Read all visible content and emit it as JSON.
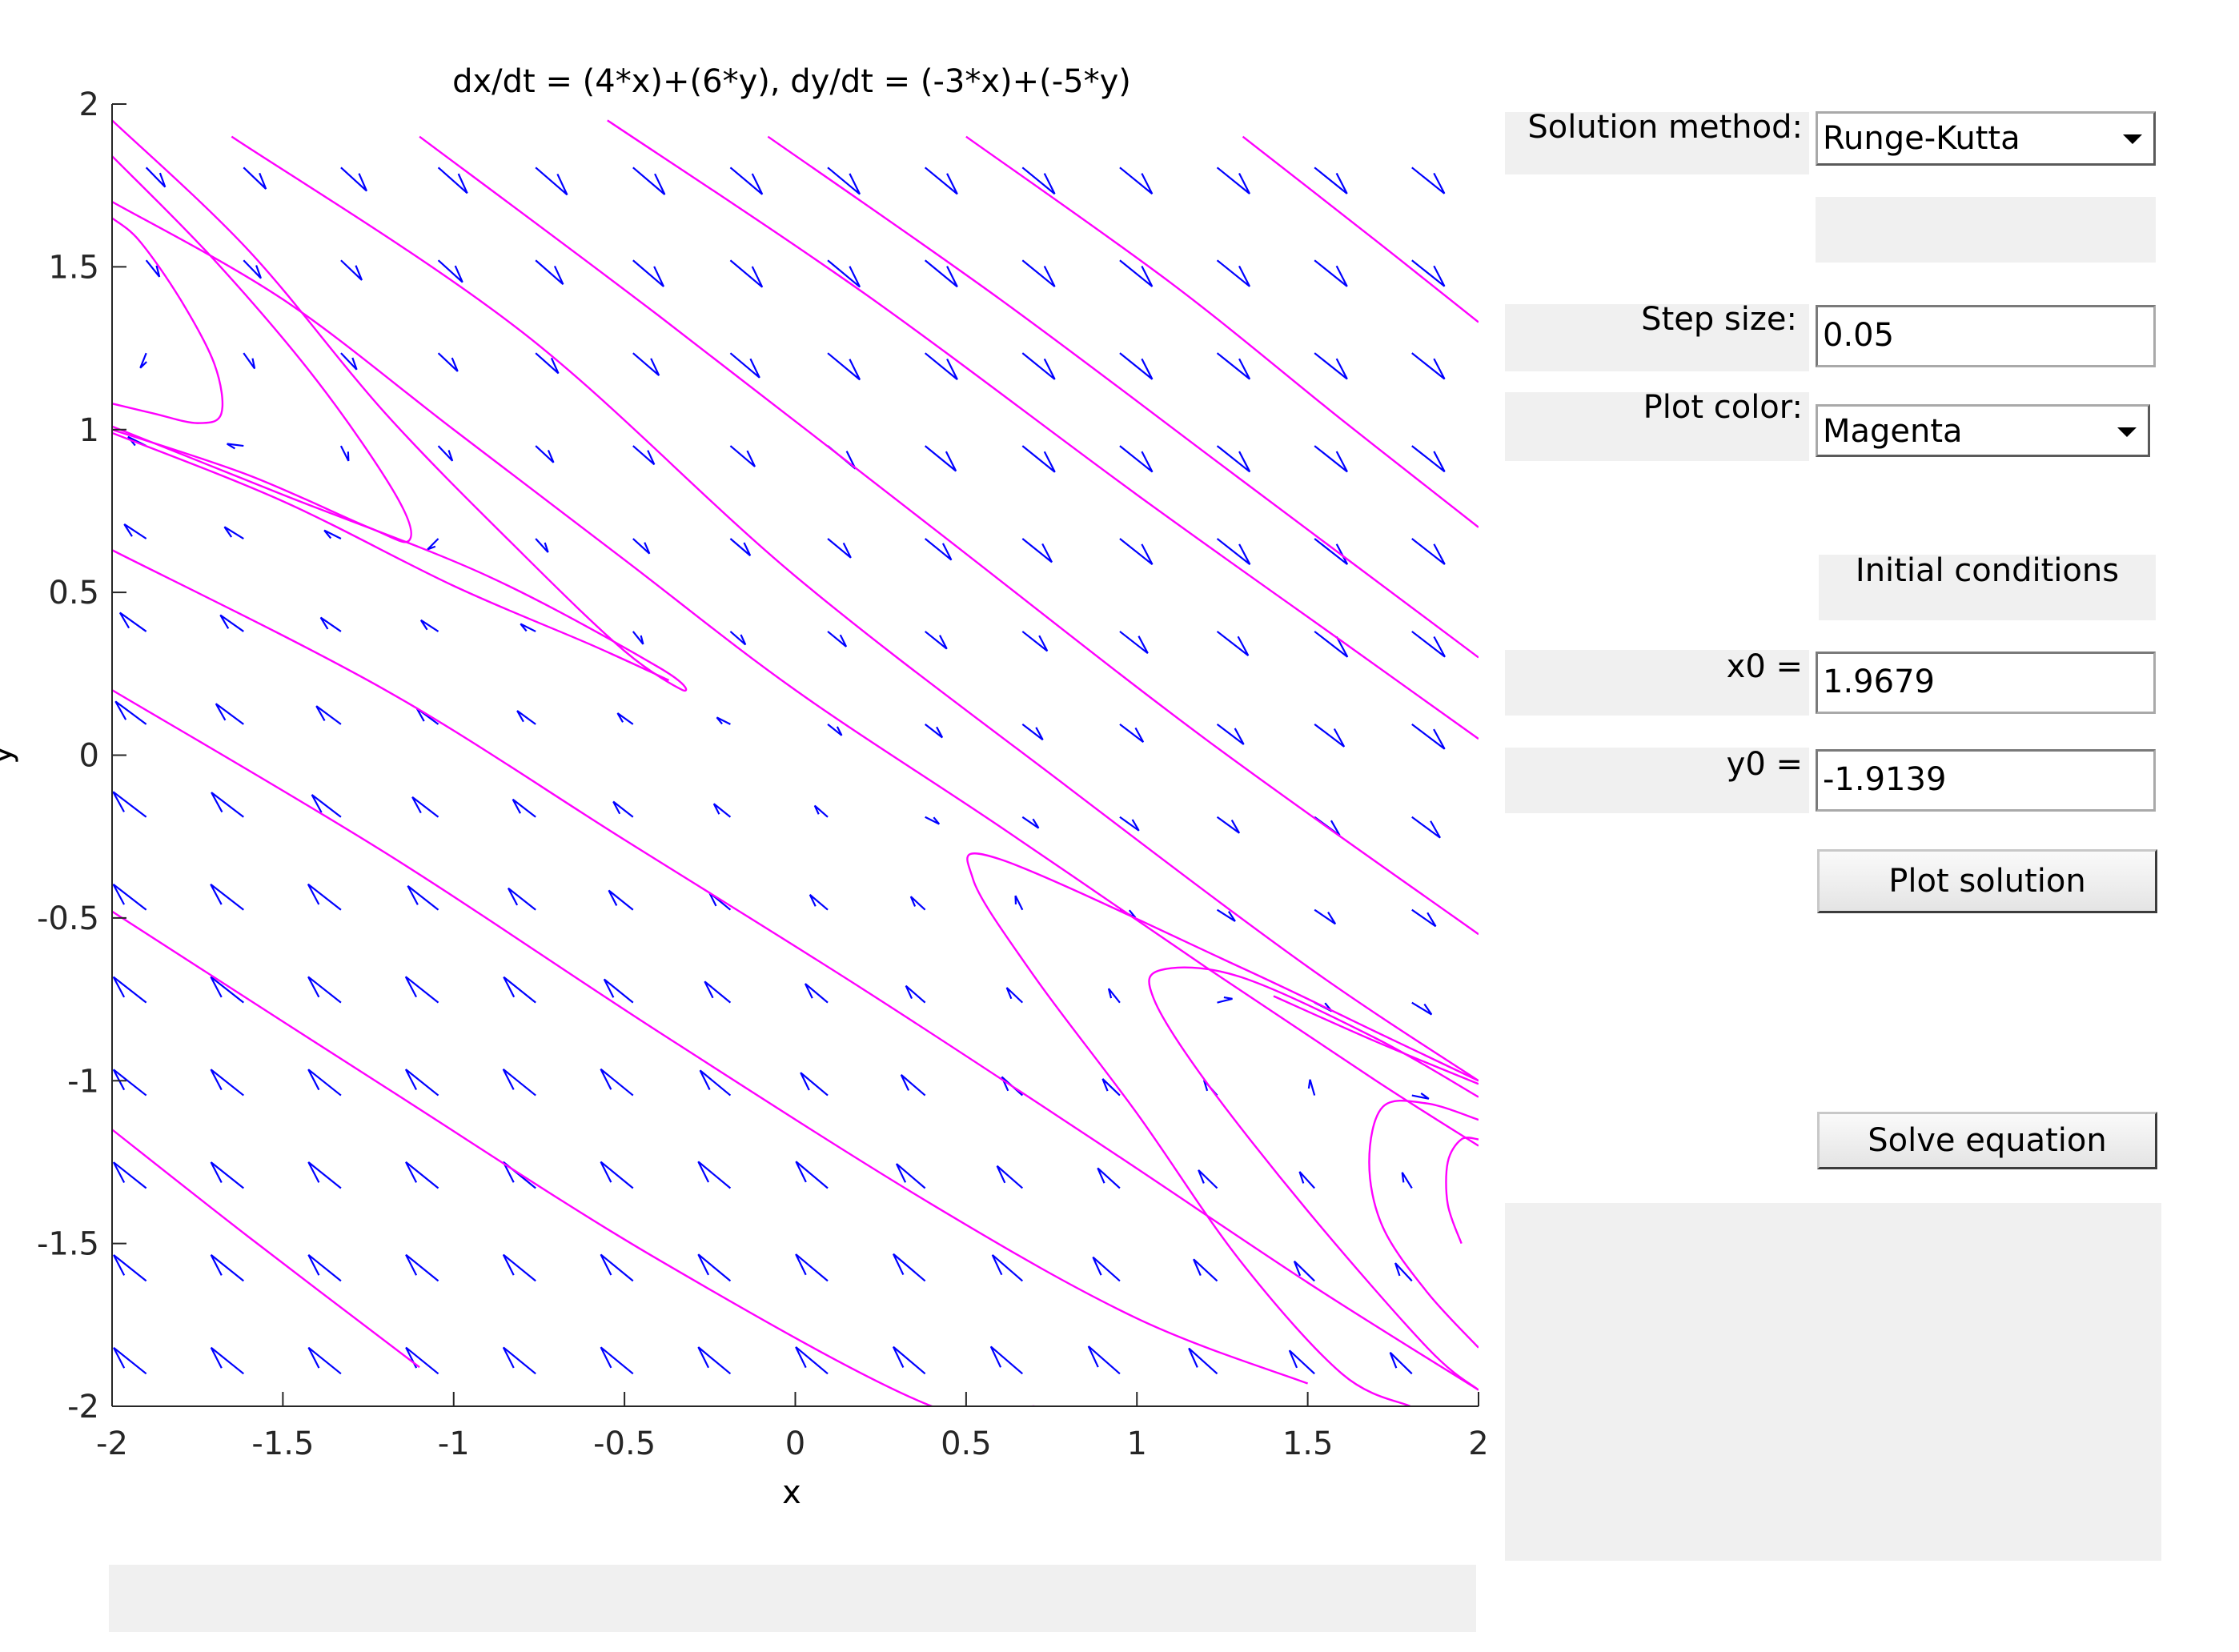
{
  "chart_data": {
    "type": "line",
    "title": "dx/dt = (4*x)+(6*y), dy/dt = (-3*x)+(-5*y)",
    "xlabel": "x",
    "ylabel": "y",
    "xlim": [
      -2,
      2
    ],
    "ylim": [
      -2,
      2
    ],
    "xticks": [
      "-2",
      "-1.5",
      "-1",
      "-0.5",
      "0",
      "0.5",
      "1",
      "1.5",
      "2"
    ],
    "yticks": [
      "2",
      "1.5",
      "1",
      "0.5",
      "0",
      "-0.5",
      "-1",
      "-1.5",
      "-2"
    ],
    "direction_field": {
      "a": 4,
      "b": 6,
      "c": -3,
      "d": -5,
      "grid_start": -1.9,
      "grid_step": 0.285,
      "grid_count": 14,
      "color": "#0000ff"
    },
    "series": [
      {
        "color": "#ff00ff",
        "x": [
          -2.0,
          -1.88,
          -1.75,
          -1.68,
          -1.7,
          -1.8,
          -1.92,
          -2.0
        ],
        "y": [
          1.08,
          1.05,
          1.02,
          1.05,
          1.2,
          1.4,
          1.58,
          1.65
        ]
      },
      {
        "color": "#ff00ff",
        "x": [
          -2.0,
          -1.6,
          -1.25,
          -1.13,
          -1.17,
          -1.4,
          -1.7,
          -2.0
        ],
        "y": [
          1.0,
          0.86,
          0.7,
          0.66,
          0.8,
          1.15,
          1.52,
          1.84
        ]
      },
      {
        "color": "#ff00ff",
        "x": [
          -2.0,
          -1.5,
          -0.9,
          -0.4,
          -0.33,
          -0.5,
          -0.8,
          -1.2,
          -1.6,
          -2.0
        ],
        "y": [
          1.01,
          0.8,
          0.55,
          0.27,
          0.2,
          0.32,
          0.62,
          1.05,
          1.55,
          1.95
        ]
      },
      {
        "color": "#ff00ff",
        "x": [
          -2.0,
          -1.5,
          -1.0,
          -0.6,
          -0.37
        ],
        "y": [
          0.99,
          0.78,
          0.52,
          0.34,
          0.23
        ]
      },
      {
        "color": "#ff00ff",
        "x": [
          -2.0,
          -1.2,
          -0.5,
          0.2,
          0.9,
          1.5,
          2.0
        ],
        "y": [
          0.63,
          0.2,
          -0.26,
          -0.72,
          -1.2,
          -1.62,
          -1.95
        ]
      },
      {
        "color": "#ff00ff",
        "x": [
          -2.0,
          -1.2,
          -0.4,
          0.4,
          1.0,
          1.5
        ],
        "y": [
          0.2,
          -0.3,
          -0.85,
          -1.38,
          -1.73,
          -1.93
        ]
      },
      {
        "color": "#ff00ff",
        "x": [
          -2.0,
          -1.2,
          -0.4,
          0.4,
          0.7
        ],
        "y": [
          -0.48,
          -1.02,
          -1.55,
          -2.0,
          -2.0
        ]
      },
      {
        "color": "#ff00ff",
        "x": [
          -2.0,
          -1.6,
          -1.1
        ],
        "y": [
          -1.15,
          -1.48,
          -1.88
        ]
      },
      {
        "color": "#ff00ff",
        "x": [
          -1.1,
          -0.4,
          0.4,
          1.2,
          2.0
        ],
        "y": [
          1.9,
          1.35,
          0.7,
          0.05,
          -0.55
        ]
      },
      {
        "color": "#ff00ff",
        "x": [
          -1.65,
          -0.8,
          0.0,
          0.8,
          1.5,
          2.0
        ],
        "y": [
          1.9,
          1.3,
          0.55,
          -0.1,
          -0.65,
          -1.0
        ]
      },
      {
        "color": "#ff00ff",
        "x": [
          -2.0,
          -1.5,
          -1.0,
          -0.5,
          0.0,
          0.6,
          1.2,
          1.7,
          2.0
        ],
        "y": [
          1.7,
          1.4,
          1.0,
          0.6,
          0.2,
          -0.22,
          -0.65,
          -1.0,
          -1.2
        ]
      },
      {
        "color": "#ff00ff",
        "x": [
          -0.55,
          0.2,
          1.0,
          1.6,
          2.0
        ],
        "y": [
          1.95,
          1.42,
          0.8,
          0.35,
          0.05
        ]
      },
      {
        "color": "#ff00ff",
        "x": [
          -0.08,
          0.6,
          1.3,
          2.0
        ],
        "y": [
          1.9,
          1.4,
          0.85,
          0.3
        ]
      },
      {
        "color": "#ff00ff",
        "x": [
          0.5,
          1.1,
          1.6,
          2.0
        ],
        "y": [
          1.9,
          1.45,
          1.03,
          0.7
        ]
      },
      {
        "color": "#ff00ff",
        "x": [
          1.31,
          1.7,
          2.0
        ],
        "y": [
          1.9,
          1.58,
          1.33
        ]
      },
      {
        "color": "#ff00ff",
        "x": [
          2.0,
          1.7,
          1.3,
          0.6,
          0.52,
          0.7,
          1.0,
          1.3,
          1.6,
          1.8
        ],
        "y": [
          -1.0,
          -0.85,
          -0.65,
          -0.32,
          -0.38,
          -0.68,
          -1.1,
          -1.55,
          -1.9,
          -2.0
        ]
      },
      {
        "color": "#ff00ff",
        "x": [
          2.0,
          1.7,
          1.3,
          1.07,
          1.05,
          1.2,
          1.5,
          1.85,
          2.0
        ],
        "y": [
          -1.05,
          -0.87,
          -0.68,
          -0.66,
          -0.75,
          -1.0,
          -1.4,
          -1.82,
          -1.95
        ]
      },
      {
        "color": "#ff00ff",
        "x": [
          2.0,
          1.7,
          1.4
        ],
        "y": [
          -1.01,
          -0.88,
          -0.74
        ]
      },
      {
        "color": "#ff00ff",
        "x": [
          2.0,
          1.85,
          1.72,
          1.68,
          1.72,
          1.85,
          2.0
        ],
        "y": [
          -1.12,
          -1.07,
          -1.08,
          -1.25,
          -1.45,
          -1.65,
          -1.82
        ]
      },
      {
        "color": "#ff00ff",
        "x": [
          2.0,
          1.95,
          1.91,
          1.91,
          1.95
        ],
        "y": [
          -1.18,
          -1.18,
          -1.25,
          -1.38,
          -1.5
        ]
      }
    ]
  },
  "controls": {
    "method_label": "Solution method:",
    "method_value": "Runge-Kutta",
    "step_label": "Step size:",
    "step_value": "0.05",
    "color_label": "Plot color:",
    "color_value": "Magenta",
    "ic_heading": "Initial conditions",
    "x0_label": "x0 =",
    "x0_value": "1.9679",
    "y0_label": "y0 =",
    "y0_value": "-1.9139",
    "plot_button": "Plot solution",
    "solve_button": "Solve equation"
  }
}
